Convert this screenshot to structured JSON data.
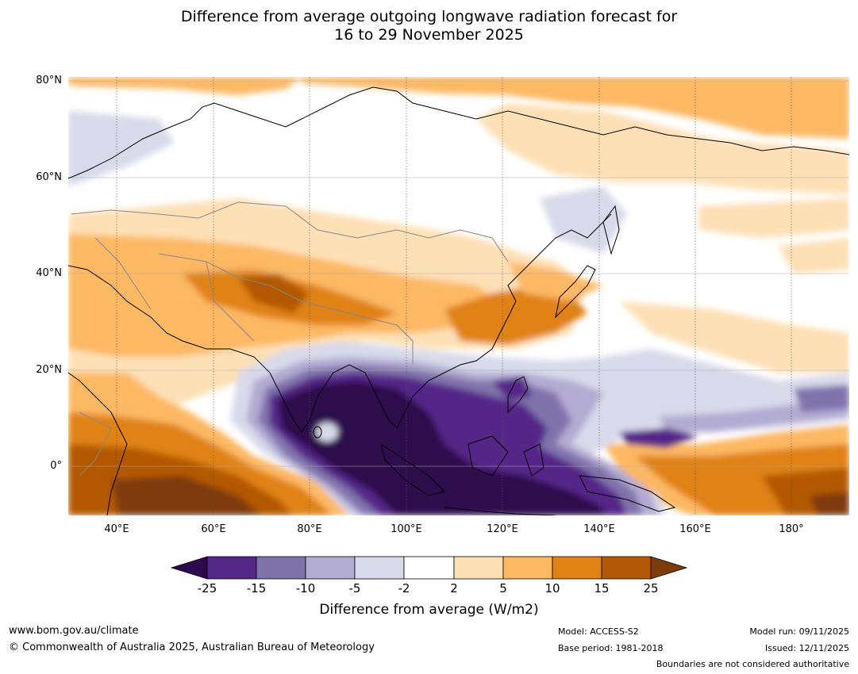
{
  "title": {
    "line1": "Difference from average outgoing longwave radiation forecast for",
    "line2": "16 to 29 November 2025"
  },
  "map": {
    "lat_labels": [
      "80°N",
      "60°N",
      "40°N",
      "20°N",
      "0°"
    ],
    "lon_labels": [
      "40°E",
      "60°E",
      "80°E",
      "100°E",
      "120°E",
      "140°E",
      "160°E",
      "180°"
    ],
    "extent": {
      "lon_min": 30,
      "lon_max": 192,
      "lat_min": -10,
      "lat_max": 81
    }
  },
  "colorbar": {
    "label": "Difference from average (W/m2)",
    "ticks": [
      "-25",
      "-15",
      "-10",
      "-5",
      "-2",
      "2",
      "5",
      "10",
      "15",
      "25"
    ],
    "colors": {
      "lt_-25": "#2d0a4e",
      "-25_-15": "#542788",
      "-15_-10": "#8073ac",
      "-10_-5": "#b2abd2",
      "-5_-2": "#d8daeb",
      "-2_2": "#ffffff",
      "2_5": "#fee0b6",
      "5_10": "#fdb863",
      "10_15": "#e08214",
      "15_25": "#b35806",
      "gt_25": "#7f3b08"
    }
  },
  "footer": {
    "website": "www.bom.gov.au/climate",
    "copyright": "© Commonwealth of Australia 2025, Australian Bureau of Meteorology",
    "model": "Model: ACCESS-S2",
    "base_period": "Base period: 1981-2018",
    "model_run": "Model run: 09/11/2025",
    "issued": "Issued: 12/11/2025",
    "disclaimer": "Boundaries are not considered authoritative"
  }
}
